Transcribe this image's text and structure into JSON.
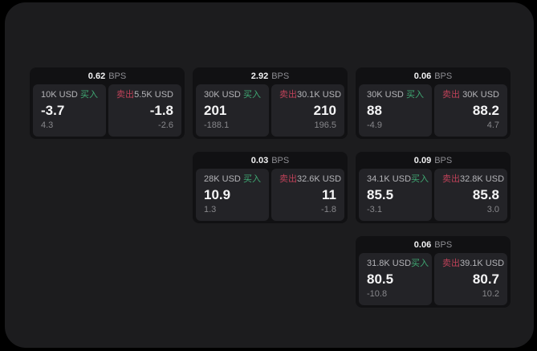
{
  "page": {
    "background": "#000000",
    "surface_background": "#1c1c1e",
    "card_background": "#111113",
    "panel_background": "#232327"
  },
  "labels": {
    "bps_unit": "BPS",
    "buy": "买入",
    "sell": "卖出"
  },
  "colors": {
    "buy_green": "#3fa873",
    "sell_red": "#bf4259",
    "value_white": "#f5f5f6",
    "label_gray": "#b4b4b8",
    "sub_gray": "#87878b"
  },
  "cards": [
    {
      "bps": "0.62",
      "buy": {
        "amount": "10K USD",
        "value": "-3.7",
        "sub": "4.3"
      },
      "sell": {
        "amount": "5.5K USD",
        "value": "-1.8",
        "sub": "-2.6"
      }
    },
    {
      "bps": "2.92",
      "buy": {
        "amount": "30K USD",
        "value": "201",
        "sub": "-188.1"
      },
      "sell": {
        "amount": "30.1K USD",
        "value": "210",
        "sub": "196.5"
      }
    },
    {
      "bps": "0.06",
      "buy": {
        "amount": "30K USD",
        "value": "88",
        "sub": "-4.9"
      },
      "sell": {
        "amount": "30K USD",
        "value": "88.2",
        "sub": "4.7"
      }
    },
    {
      "bps": "0.03",
      "buy": {
        "amount": "28K USD",
        "value": "10.9",
        "sub": "1.3"
      },
      "sell": {
        "amount": "32.6K USD",
        "value": "11",
        "sub": "-1.8"
      }
    },
    {
      "bps": "0.09",
      "buy": {
        "amount": "34.1K USD",
        "value": "85.5",
        "sub": "-3.1"
      },
      "sell": {
        "amount": "32.8K USD",
        "value": "85.8",
        "sub": "3.0"
      }
    },
    {
      "bps": "0.06",
      "buy": {
        "amount": "31.8K USD",
        "value": "80.5",
        "sub": "-10.8"
      },
      "sell": {
        "amount": "39.1K USD",
        "value": "80.7",
        "sub": "10.2"
      }
    }
  ]
}
